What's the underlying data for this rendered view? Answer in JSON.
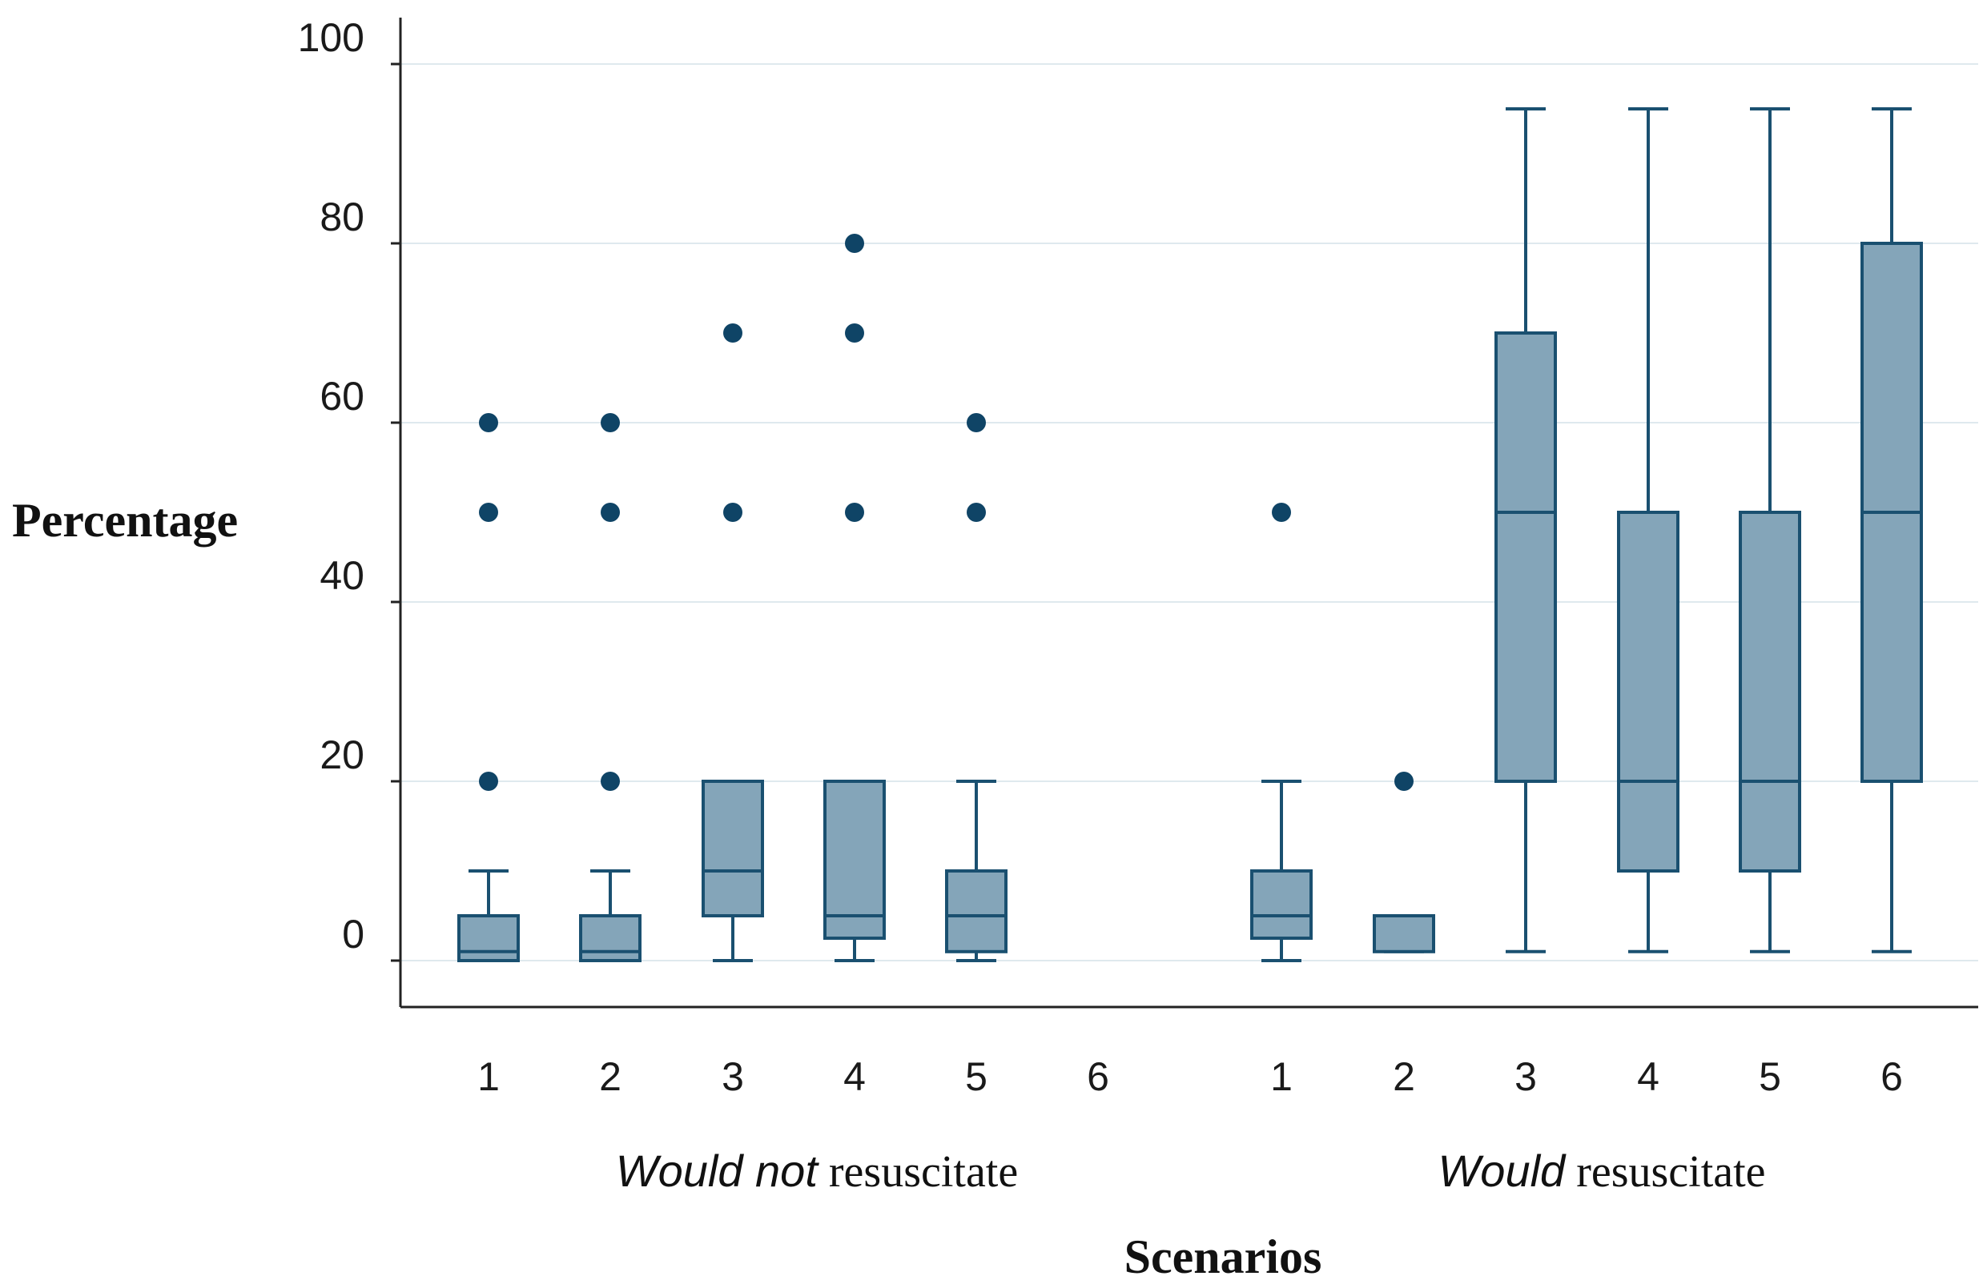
{
  "chart_data": {
    "type": "box",
    "title": "",
    "xlabel": "Scenarios",
    "ylabel": "Percentage",
    "ylim": [
      0,
      100
    ],
    "yticks": [
      0,
      20,
      40,
      60,
      80,
      100
    ],
    "grid": true,
    "colors": {
      "box_fill": "#84a5b9",
      "stroke": "#1a5070",
      "outlier": "#0f4466",
      "grid": "#dfe9ee",
      "axis": "#222222"
    },
    "groups": [
      {
        "label_italic": "Would not",
        "label_rest": " resuscitate",
        "scenarios": [
          {
            "label": "1",
            "whisker_low": 0,
            "q1": 0,
            "median": 1,
            "q3": 5,
            "whisker_high": 10,
            "outliers": [
              20,
              50,
              60
            ]
          },
          {
            "label": "2",
            "whisker_low": 0,
            "q1": 0,
            "median": 1,
            "q3": 5,
            "whisker_high": 10,
            "outliers": [
              20,
              50,
              60
            ]
          },
          {
            "label": "3",
            "whisker_low": 0,
            "q1": 5,
            "median": 10,
            "q3": 20,
            "whisker_high": 20,
            "outliers": [
              50,
              70
            ]
          },
          {
            "label": "4",
            "whisker_low": 0,
            "q1": 2.5,
            "median": 5,
            "q3": 20,
            "whisker_high": 20,
            "outliers": [
              50,
              70,
              80
            ]
          },
          {
            "label": "5",
            "whisker_low": 0,
            "q1": 1,
            "median": 5,
            "q3": 10,
            "whisker_high": 20,
            "outliers": [
              50,
              60
            ]
          },
          {
            "label": "6",
            "empty": true
          }
        ]
      },
      {
        "label_italic": "Would",
        "label_rest": " resuscitate",
        "scenarios": [
          {
            "label": "1",
            "whisker_low": 0,
            "q1": 2.5,
            "median": 5,
            "q3": 10,
            "whisker_high": 20,
            "outliers": [
              50
            ]
          },
          {
            "label": "2",
            "whisker_low": 1,
            "q1": 1,
            "median": 5,
            "q3": 5,
            "whisker_high": 5,
            "outliers": [
              20
            ]
          },
          {
            "label": "3",
            "whisker_low": 1,
            "q1": 20,
            "median": 50,
            "q3": 70,
            "whisker_high": 95,
            "outliers": []
          },
          {
            "label": "4",
            "whisker_low": 1,
            "q1": 10,
            "median": 20,
            "q3": 50,
            "whisker_high": 95,
            "outliers": []
          },
          {
            "label": "5",
            "whisker_low": 1,
            "q1": 10,
            "median": 20,
            "q3": 50,
            "whisker_high": 95,
            "outliers": []
          },
          {
            "label": "6",
            "whisker_low": 1,
            "q1": 20,
            "median": 50,
            "q3": 80,
            "whisker_high": 95,
            "outliers": []
          }
        ]
      }
    ]
  }
}
